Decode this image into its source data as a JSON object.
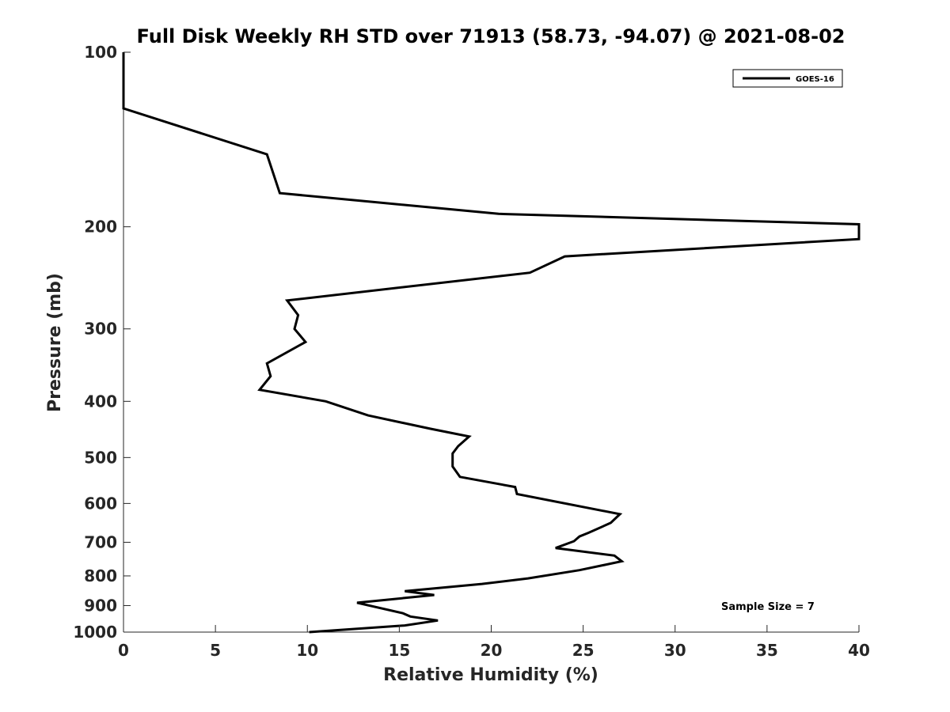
{
  "chart_data": {
    "type": "line",
    "title": "Full Disk Weekly RH STD over 71913 (58.73, -94.07) @ 2021-08-02",
    "xlabel": "Relative Humidity (%)",
    "ylabel": "Pressure (mb)",
    "xlim": [
      0,
      40
    ],
    "ylim": [
      100,
      1000
    ],
    "y_scale": "log",
    "y_reversed": true,
    "grid": false,
    "x_ticks": [
      "0",
      "5",
      "10",
      "15",
      "20",
      "25",
      "30",
      "35",
      "40"
    ],
    "x_tick_values": [
      0,
      5,
      10,
      15,
      20,
      25,
      30,
      35,
      40
    ],
    "y_ticks": [
      "100",
      "200",
      "300",
      "400",
      "500",
      "600",
      "700",
      "800",
      "900",
      "1000"
    ],
    "y_tick_values": [
      100,
      200,
      300,
      400,
      500,
      600,
      700,
      800,
      900,
      1000
    ],
    "legend": {
      "position": "top-right",
      "entries": [
        "GOES-16"
      ]
    },
    "annotation": "Sample Size = 7",
    "series": [
      {
        "name": "GOES-16",
        "color": "#000000",
        "points": [
          [
            0,
            100
          ],
          [
            0,
            125
          ],
          [
            7.8,
            150
          ],
          [
            8.5,
            175
          ],
          [
            20.4,
            190
          ],
          [
            40,
            198
          ],
          [
            40,
            210
          ],
          [
            24.0,
            225
          ],
          [
            22.1,
            240
          ],
          [
            8.9,
            268
          ],
          [
            9.5,
            284
          ],
          [
            9.3,
            300
          ],
          [
            9.9,
            316
          ],
          [
            7.8,
            344
          ],
          [
            8.0,
            362
          ],
          [
            7.4,
            382
          ],
          [
            11.0,
            400
          ],
          [
            13.3,
            423
          ],
          [
            16.7,
            446
          ],
          [
            18.8,
            460
          ],
          [
            18.2,
            478
          ],
          [
            17.9,
            492
          ],
          [
            17.9,
            518
          ],
          [
            18.3,
            540
          ],
          [
            21.3,
            562
          ],
          [
            21.4,
            578
          ],
          [
            27.0,
            626
          ],
          [
            26.5,
            648
          ],
          [
            25.3,
            674
          ],
          [
            24.8,
            684
          ],
          [
            24.5,
            697
          ],
          [
            23.5,
            716
          ],
          [
            26.7,
            738
          ],
          [
            27.1,
            755
          ],
          [
            24.8,
            782
          ],
          [
            22.0,
            808
          ],
          [
            19.5,
            826
          ],
          [
            15.3,
            850
          ],
          [
            16.9,
            863
          ],
          [
            12.7,
            890
          ],
          [
            15.2,
            928
          ],
          [
            15.6,
            940
          ],
          [
            17.1,
            955
          ],
          [
            15.3,
            974
          ],
          [
            10.1,
            1000
          ]
        ]
      }
    ]
  }
}
